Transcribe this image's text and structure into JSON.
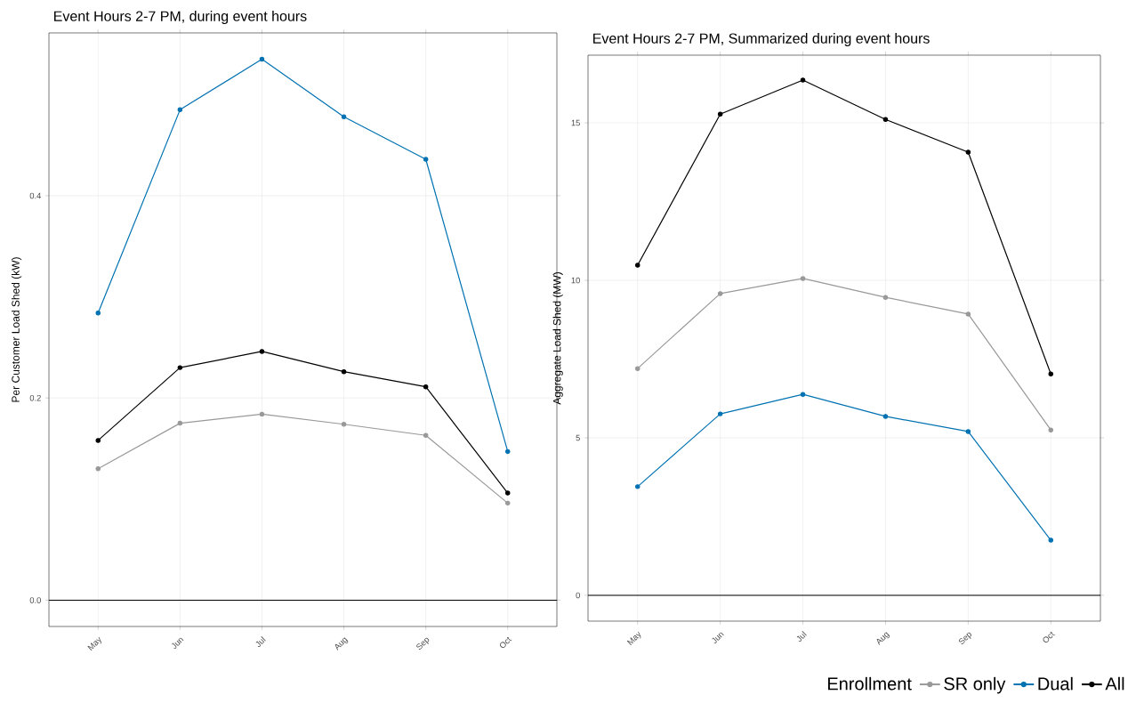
{
  "chart_data": [
    {
      "type": "line",
      "title": "Event Hours 2-7 PM, during event hours",
      "ylabel": "Per Customer Load Shed (kW)",
      "categories": [
        "May",
        "Jun",
        "Jul",
        "Aug",
        "Sep",
        "Oct"
      ],
      "series": [
        {
          "color": "#999999",
          "values": [
            0.13,
            0.175,
            0.184,
            0.174,
            0.163,
            0.096
          ]
        },
        {
          "color": "#0072b2",
          "values": [
            0.284,
            0.485,
            0.535,
            0.478,
            0.436,
            0.147
          ]
        },
        {
          "color": "#000000",
          "values": [
            0.158,
            0.23,
            0.246,
            0.226,
            0.211,
            0.106
          ]
        }
      ],
      "ylim": [
        -0.026,
        0.561
      ],
      "yticks": [
        {
          "value": 0,
          "label": "0.0"
        },
        {
          "value": 0.2,
          "label": "0.2"
        },
        {
          "value": 0.4,
          "label": "0.4"
        }
      ],
      "ref_lines": [
        {
          "axis": "y",
          "value": 0,
          "color": "#000000"
        }
      ],
      "grid": true,
      "marker": "circle",
      "line_style": "solid",
      "legend": false
    },
    {
      "type": "line",
      "title": "Event Hours 2-7 PM, Summarized during event hours",
      "ylabel": "Aggregate Load Shed (MW)",
      "legend_title": "Enrollment",
      "categories": [
        "May",
        "Jun",
        "Jul",
        "Aug",
        "Sep",
        "Oct"
      ],
      "series": [
        {
          "name": "SR only",
          "color": "#999999",
          "values": [
            7.2,
            9.58,
            10.06,
            9.46,
            8.93,
            5.25
          ]
        },
        {
          "name": "Dual",
          "color": "#0072b2",
          "values": [
            3.45,
            5.76,
            6.38,
            5.68,
            5.2,
            1.75
          ]
        },
        {
          "name": "All",
          "color": "#000000",
          "values": [
            10.48,
            15.28,
            16.36,
            15.11,
            14.07,
            7.03
          ]
        }
      ],
      "ylim": [
        -0.82,
        17.15
      ],
      "yticks": [
        0,
        5,
        10,
        15
      ],
      "ref_lines": [
        {
          "axis": "y",
          "value": 0,
          "color": "#000000"
        }
      ],
      "grid": true,
      "marker": "circle",
      "line_style": "solid",
      "legend": "bottom"
    }
  ]
}
